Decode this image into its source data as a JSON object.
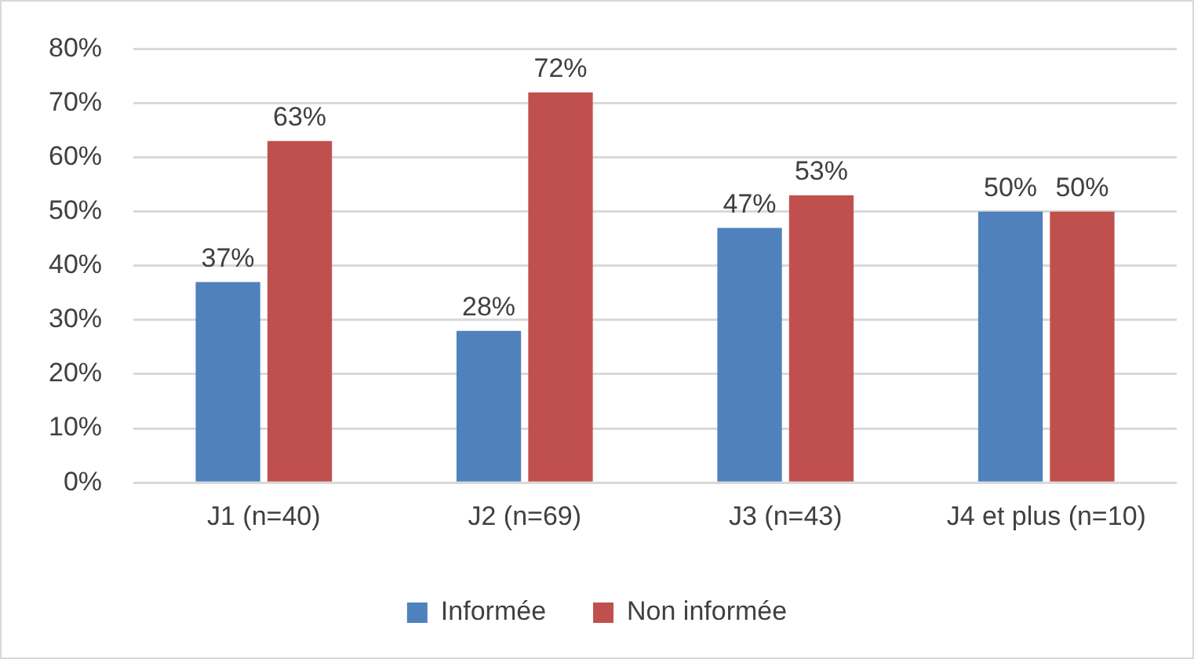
{
  "chart_data": {
    "type": "bar",
    "categories": [
      "J1 (n=40)",
      "J2 (n=69)",
      "J3 (n=43)",
      "J4 et plus (n=10)"
    ],
    "series": [
      {
        "name": "Informée",
        "color": "#4f81bd",
        "values": [
          37,
          28,
          47,
          50
        ],
        "value_labels": [
          "37%",
          "28%",
          "47%",
          "50%"
        ]
      },
      {
        "name": "Non informée",
        "color": "#c0504d",
        "values": [
          63,
          72,
          53,
          50
        ],
        "value_labels": [
          "63%",
          "72%",
          "53%",
          "50%"
        ]
      }
    ],
    "ylim": [
      0,
      80
    ],
    "yticks": [
      {
        "value": 0,
        "label": "0%"
      },
      {
        "value": 10,
        "label": "10%"
      },
      {
        "value": 20,
        "label": "20%"
      },
      {
        "value": 30,
        "label": "30%"
      },
      {
        "value": 40,
        "label": "40%"
      },
      {
        "value": 50,
        "label": "50%"
      },
      {
        "value": 60,
        "label": "60%"
      },
      {
        "value": 70,
        "label": "70%"
      },
      {
        "value": 80,
        "label": "80%"
      }
    ],
    "grid": "y",
    "legend": "bottom"
  }
}
